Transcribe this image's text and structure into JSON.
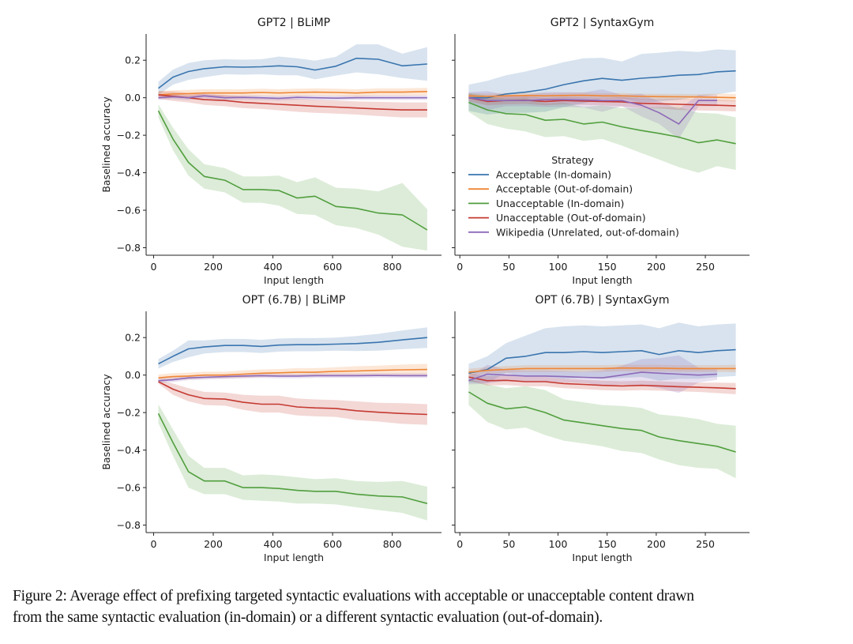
{
  "caption": {
    "line1": "Figure 2: Average effect of prefixing targeted syntactic evaluations with acceptable or unacceptable content drawn",
    "line2": "from the same syntactic evaluation (in-domain) or a different syntactic evaluation (out-of-domain)."
  },
  "legend": {
    "title": "Strategy",
    "placement": "center (inside GPT2 | SyntaxGym panel)",
    "entries": [
      {
        "key": "acc_in",
        "label": "Acceptable (In-domain)",
        "color": "#3a75af"
      },
      {
        "key": "acc_out",
        "label": "Acceptable (Out-of-domain)",
        "color": "#ef8636"
      },
      {
        "key": "unacc_in",
        "label": "Unacceptable (In-domain)",
        "color": "#519e3e"
      },
      {
        "key": "unacc_out",
        "label": "Unacceptable (Out-of-domain)",
        "color": "#c53a32"
      },
      {
        "key": "wiki",
        "label": "Wikipedia (Unrelated, out-of-domain)",
        "color": "#8d69b8"
      }
    ]
  },
  "chart_data": [
    {
      "type": "line",
      "title": "GPT2 | BLiMP",
      "xlabel": "Input length",
      "ylabel": "Baselined accuracy",
      "xlim": [
        -25,
        965
      ],
      "ylim": [
        -0.84,
        0.34
      ],
      "xticks": [
        0,
        200,
        400,
        600,
        800
      ],
      "yticks": [
        0.2,
        0.0,
        -0.2,
        -0.4,
        -0.6,
        -0.8
      ],
      "ytick_labels": [
        "0.2",
        "0.0",
        "−0.2",
        "−0.4",
        "−0.6",
        "−0.8"
      ],
      "show_ytick_labels": true,
      "grid": false,
      "x": [
        16,
        65,
        117,
        170,
        239,
        300,
        362,
        420,
        481,
        541,
        611,
        680,
        753,
        834,
        917
      ],
      "series": [
        {
          "key": "acc_in",
          "values": [
            0.05,
            0.11,
            0.14,
            0.155,
            0.165,
            0.163,
            0.165,
            0.17,
            0.165,
            0.148,
            0.168,
            0.21,
            0.205,
            0.17,
            0.18
          ],
          "ci": [
            0.035,
            0.04,
            0.045,
            0.045,
            0.04,
            0.04,
            0.04,
            0.05,
            0.045,
            0.05,
            0.05,
            0.075,
            0.08,
            0.065,
            0.09
          ]
        },
        {
          "key": "acc_out",
          "values": [
            0.015,
            0.02,
            0.022,
            0.025,
            0.025,
            0.025,
            0.028,
            0.025,
            0.028,
            0.03,
            0.028,
            0.025,
            0.03,
            0.03,
            0.033
          ],
          "ci": [
            0.02,
            0.02,
            0.02,
            0.02,
            0.02,
            0.02,
            0.02,
            0.02,
            0.02,
            0.02,
            0.02,
            0.02,
            0.02,
            0.02,
            0.02
          ]
        },
        {
          "key": "unacc_in",
          "values": [
            -0.07,
            -0.22,
            -0.345,
            -0.42,
            -0.44,
            -0.49,
            -0.49,
            -0.495,
            -0.535,
            -0.525,
            -0.58,
            -0.59,
            -0.615,
            -0.625,
            -0.705
          ],
          "ci": [
            0.035,
            0.06,
            0.07,
            0.065,
            0.065,
            0.07,
            0.07,
            0.08,
            0.085,
            0.1,
            0.1,
            0.105,
            0.115,
            0.17,
            0.11
          ]
        },
        {
          "key": "unacc_out",
          "values": [
            0.015,
            0.008,
            0.0,
            -0.01,
            -0.015,
            -0.025,
            -0.03,
            -0.035,
            -0.04,
            -0.045,
            -0.05,
            -0.055,
            -0.06,
            -0.065,
            -0.065
          ],
          "ci": [
            0.02,
            0.025,
            0.025,
            0.028,
            0.03,
            0.03,
            0.03,
            0.032,
            0.035,
            0.035,
            0.035,
            0.035,
            0.038,
            0.04,
            0.04
          ]
        },
        {
          "key": "wiki",
          "values": [
            0.0,
            0.005,
            0.0,
            0.01,
            0.0,
            0.002,
            0.0,
            -0.003,
            0.002,
            0.0,
            -0.002,
            0.0,
            0.0,
            0.0,
            0.0
          ],
          "ci": [
            0.012,
            0.012,
            0.012,
            0.012,
            0.012,
            0.012,
            0.012,
            0.012,
            0.012,
            0.012,
            0.012,
            0.012,
            0.012,
            0.012,
            0.012
          ]
        }
      ]
    },
    {
      "type": "line",
      "title": "GPT2 | SyntaxGym",
      "xlabel": "Input length",
      "ylabel": "",
      "xlim": [
        -5,
        295
      ],
      "ylim": [
        -0.84,
        0.34
      ],
      "xticks": [
        0,
        50,
        100,
        150,
        200,
        250
      ],
      "yticks": [
        0.2,
        0.0,
        -0.2,
        -0.4,
        -0.6,
        -0.8
      ],
      "show_ytick_labels": false,
      "grid": false,
      "x": [
        9,
        28,
        47,
        67,
        87,
        106,
        126,
        145,
        165,
        185,
        203,
        223,
        243,
        262,
        281
      ],
      "series": [
        {
          "key": "acc_in",
          "values": [
            0.0,
            0.0,
            0.02,
            0.03,
            0.045,
            0.07,
            0.09,
            0.103,
            0.093,
            0.104,
            0.11,
            0.12,
            0.124,
            0.138,
            0.143
          ],
          "ci": [
            0.07,
            0.09,
            0.1,
            0.11,
            0.12,
            0.12,
            0.12,
            0.11,
            0.1,
            0.13,
            0.13,
            0.13,
            0.12,
            0.12,
            0.11
          ]
        },
        {
          "key": "acc_out",
          "values": [
            0.01,
            0.007,
            0.01,
            0.012,
            0.01,
            0.012,
            0.013,
            0.01,
            0.01,
            0.007,
            0.006,
            0.005,
            0.004,
            0.002,
            0.0
          ],
          "ci": [
            0.015,
            0.015,
            0.015,
            0.015,
            0.015,
            0.015,
            0.015,
            0.015,
            0.015,
            0.015,
            0.015,
            0.015,
            0.015,
            0.02,
            0.02
          ]
        },
        {
          "key": "unacc_in",
          "values": [
            -0.025,
            -0.065,
            -0.085,
            -0.09,
            -0.12,
            -0.115,
            -0.14,
            -0.13,
            -0.155,
            -0.175,
            -0.19,
            -0.21,
            -0.24,
            -0.225,
            -0.245
          ],
          "ci": [
            0.05,
            0.075,
            0.08,
            0.09,
            0.09,
            0.09,
            0.09,
            0.09,
            0.1,
            0.12,
            0.14,
            0.16,
            0.16,
            0.14,
            0.14
          ]
        },
        {
          "key": "unacc_out",
          "values": [
            0.0,
            -0.02,
            -0.015,
            -0.013,
            -0.02,
            -0.015,
            -0.018,
            -0.02,
            -0.022,
            -0.03,
            -0.032,
            -0.035,
            -0.038,
            -0.04,
            -0.043
          ],
          "ci": [
            0.02,
            0.02,
            0.02,
            0.02,
            0.02,
            0.02,
            0.02,
            0.02,
            0.025,
            0.025,
            0.025,
            0.03,
            0.03,
            0.03,
            0.03
          ]
        },
        {
          "key": "wiki",
          "values": [
            0.0,
            -0.015,
            -0.015,
            -0.015,
            -0.01,
            -0.01,
            -0.012,
            -0.015,
            -0.015,
            -0.04,
            -0.08,
            -0.14,
            -0.015,
            -0.015,
            null
          ],
          "ci": [
            0.03,
            0.05,
            0.03,
            0.03,
            0.04,
            0.04,
            0.04,
            0.06,
            0.03,
            0.06,
            0.06,
            0.08,
            0.03,
            0.03,
            null
          ]
        }
      ]
    },
    {
      "type": "line",
      "title": "OPT (6.7B) | BLiMP",
      "xlabel": "Input length",
      "ylabel": "Baselined accuracy",
      "xlim": [
        -25,
        965
      ],
      "ylim": [
        -0.84,
        0.34
      ],
      "xticks": [
        0,
        200,
        400,
        600,
        800
      ],
      "yticks": [
        0.2,
        0.0,
        -0.2,
        -0.4,
        -0.6,
        -0.8
      ],
      "ytick_labels": [
        "0.2",
        "0.0",
        "−0.2",
        "−0.4",
        "−0.6",
        "−0.8"
      ],
      "show_ytick_labels": true,
      "grid": false,
      "x": [
        16,
        65,
        117,
        170,
        239,
        300,
        362,
        420,
        481,
        541,
        611,
        680,
        753,
        834,
        917
      ],
      "series": [
        {
          "key": "acc_in",
          "values": [
            0.06,
            0.1,
            0.14,
            0.15,
            0.158,
            0.158,
            0.153,
            0.16,
            0.162,
            0.162,
            0.165,
            0.168,
            0.175,
            0.188,
            0.2
          ],
          "ci": [
            0.025,
            0.03,
            0.045,
            0.035,
            0.035,
            0.035,
            0.035,
            0.035,
            0.035,
            0.035,
            0.035,
            0.04,
            0.045,
            0.05,
            0.055
          ]
        },
        {
          "key": "acc_out",
          "values": [
            -0.015,
            -0.008,
            -0.005,
            0.0,
            0.0,
            0.005,
            0.01,
            0.012,
            0.015,
            0.015,
            0.02,
            0.022,
            0.025,
            0.028,
            0.03
          ],
          "ci": [
            0.018,
            0.018,
            0.018,
            0.018,
            0.018,
            0.02,
            0.02,
            0.02,
            0.022,
            0.022,
            0.022,
            0.025,
            0.025,
            0.028,
            0.03
          ]
        },
        {
          "key": "unacc_in",
          "values": [
            -0.205,
            -0.36,
            -0.515,
            -0.565,
            -0.565,
            -0.6,
            -0.6,
            -0.605,
            -0.615,
            -0.62,
            -0.62,
            -0.635,
            -0.645,
            -0.65,
            -0.685
          ],
          "ci": [
            0.05,
            0.07,
            0.085,
            0.07,
            0.07,
            0.065,
            0.07,
            0.07,
            0.07,
            0.065,
            0.07,
            0.07,
            0.075,
            0.085,
            0.09
          ]
        },
        {
          "key": "unacc_out",
          "values": [
            -0.035,
            -0.075,
            -0.105,
            -0.125,
            -0.128,
            -0.145,
            -0.155,
            -0.155,
            -0.17,
            -0.175,
            -0.178,
            -0.19,
            -0.198,
            -0.205,
            -0.21
          ],
          "ci": [
            0.01,
            0.03,
            0.035,
            0.035,
            0.035,
            0.04,
            0.045,
            0.045,
            0.045,
            0.045,
            0.045,
            0.05,
            0.05,
            0.055,
            0.055
          ]
        },
        {
          "key": "wiki",
          "values": [
            -0.03,
            -0.025,
            -0.015,
            -0.012,
            -0.008,
            -0.005,
            -0.003,
            -0.005,
            -0.005,
            -0.003,
            -0.003,
            -0.003,
            -0.002,
            -0.003,
            -0.003
          ],
          "ci": [
            0.012,
            0.012,
            0.012,
            0.012,
            0.012,
            0.012,
            0.012,
            0.012,
            0.012,
            0.012,
            0.012,
            0.012,
            0.012,
            0.012,
            0.012
          ]
        }
      ]
    },
    {
      "type": "line",
      "title": "OPT (6.7B) | SyntaxGym",
      "xlabel": "Input length",
      "ylabel": "",
      "xlim": [
        -5,
        295
      ],
      "ylim": [
        -0.84,
        0.34
      ],
      "xticks": [
        0,
        50,
        100,
        150,
        200,
        250
      ],
      "yticks": [
        0.2,
        0.0,
        -0.2,
        -0.4,
        -0.6,
        -0.8
      ],
      "show_ytick_labels": false,
      "grid": false,
      "x": [
        9,
        28,
        47,
        67,
        87,
        106,
        126,
        145,
        165,
        185,
        203,
        223,
        243,
        262,
        281
      ],
      "series": [
        {
          "key": "acc_in",
          "values": [
            0.01,
            0.03,
            0.09,
            0.1,
            0.12,
            0.12,
            0.125,
            0.12,
            0.125,
            0.13,
            0.11,
            0.13,
            0.12,
            0.13,
            0.135
          ],
          "ci": [
            0.05,
            0.07,
            0.08,
            0.11,
            0.13,
            0.14,
            0.14,
            0.14,
            0.14,
            0.14,
            0.14,
            0.15,
            0.14,
            0.14,
            0.14
          ]
        },
        {
          "key": "acc_out",
          "values": [
            0.015,
            0.025,
            0.03,
            0.035,
            0.035,
            0.035,
            0.035,
            0.035,
            0.038,
            0.037,
            0.037,
            0.035,
            0.035,
            0.035,
            0.035
          ],
          "ci": [
            0.018,
            0.018,
            0.018,
            0.018,
            0.018,
            0.018,
            0.018,
            0.018,
            0.018,
            0.018,
            0.018,
            0.018,
            0.018,
            0.018,
            0.02
          ]
        },
        {
          "key": "unacc_in",
          "values": [
            -0.09,
            -0.15,
            -0.18,
            -0.17,
            -0.2,
            -0.24,
            -0.255,
            -0.27,
            -0.285,
            -0.295,
            -0.33,
            -0.35,
            -0.365,
            -0.38,
            -0.41
          ],
          "ci": [
            0.07,
            0.1,
            0.11,
            0.11,
            0.12,
            0.11,
            0.11,
            0.11,
            0.12,
            0.12,
            0.12,
            0.13,
            0.13,
            0.12,
            0.14
          ]
        },
        {
          "key": "unacc_out",
          "values": [
            -0.01,
            -0.03,
            -0.028,
            -0.035,
            -0.035,
            -0.045,
            -0.05,
            -0.055,
            -0.058,
            -0.055,
            -0.058,
            -0.062,
            -0.065,
            -0.068,
            -0.072
          ],
          "ci": [
            0.02,
            0.025,
            0.025,
            0.025,
            0.025,
            0.025,
            0.025,
            0.025,
            0.025,
            0.025,
            0.025,
            0.025,
            0.025,
            0.028,
            0.03
          ]
        },
        {
          "key": "wiki",
          "values": [
            -0.03,
            0.005,
            0.0,
            -0.005,
            -0.005,
            -0.008,
            -0.012,
            -0.015,
            0.0,
            0.015,
            0.01,
            0.005,
            0.0,
            0.005,
            null
          ],
          "ci": [
            0.02,
            0.05,
            0.03,
            0.03,
            0.03,
            0.03,
            0.03,
            0.04,
            0.05,
            0.07,
            0.08,
            0.1,
            0.04,
            0.03,
            null
          ]
        }
      ]
    }
  ]
}
